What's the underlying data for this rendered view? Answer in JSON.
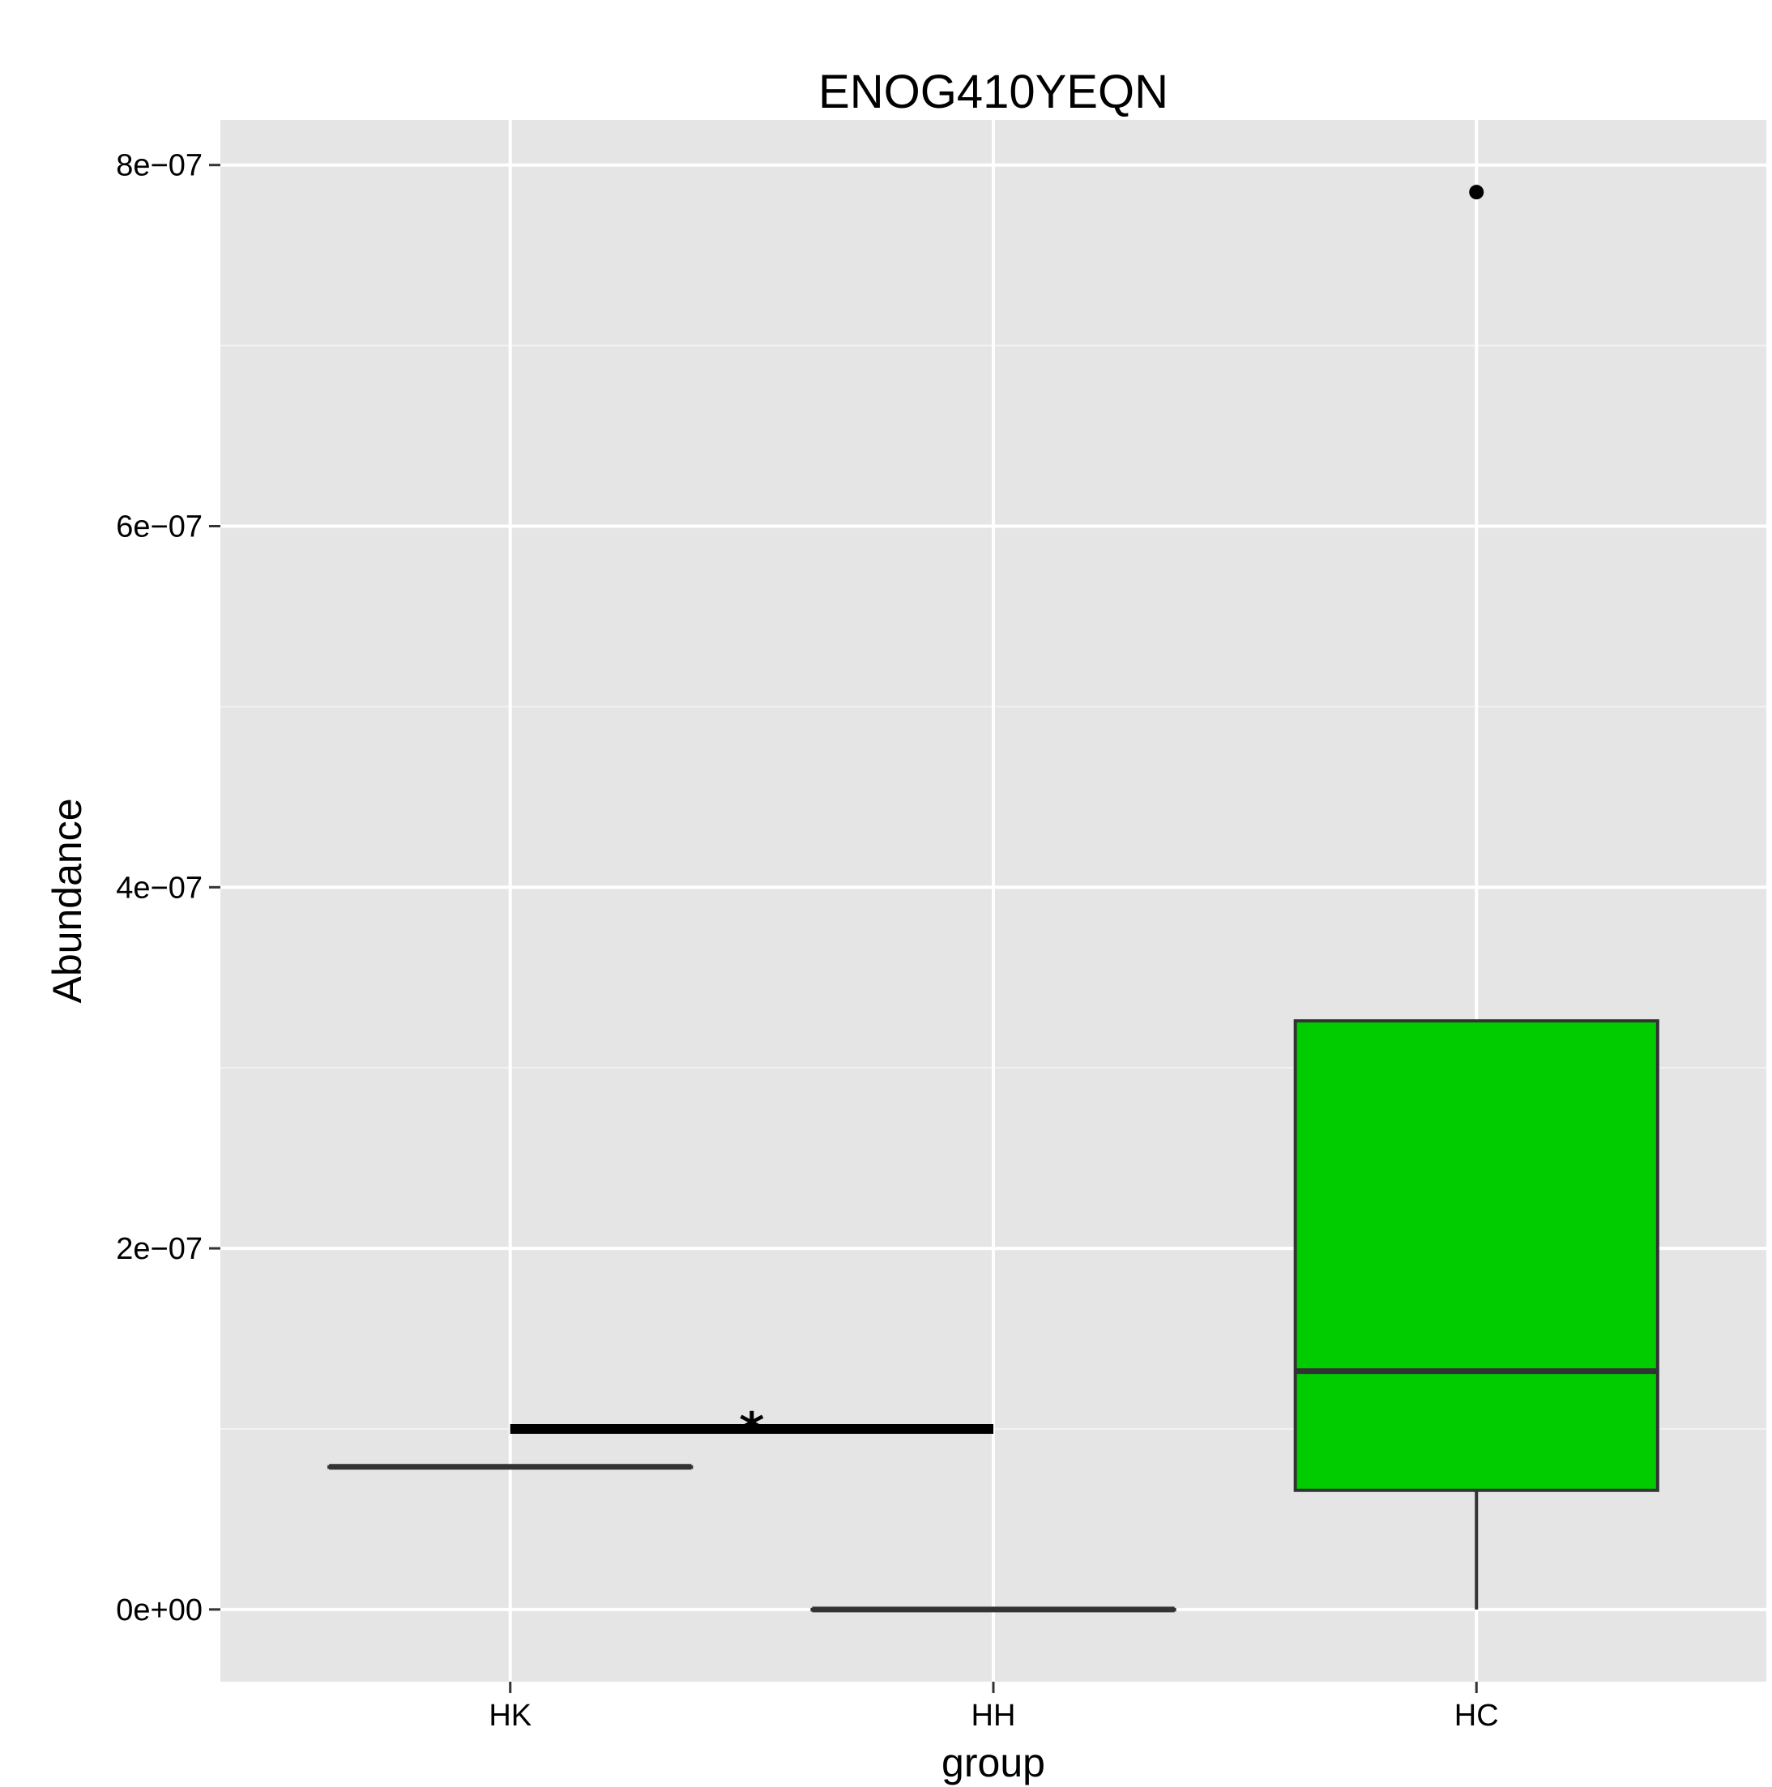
{
  "chart_data": {
    "type": "box",
    "title": "ENOG410YEQN",
    "xlabel": "group",
    "ylabel": "Abundance",
    "categories": [
      "HK",
      "HH",
      "HC"
    ],
    "y_ticks": [
      {
        "value": 0,
        "label": "0e+00"
      },
      {
        "value": 2e-07,
        "label": "2e−07"
      },
      {
        "value": 4e-07,
        "label": "4e−07"
      },
      {
        "value": 6e-07,
        "label": "6e−07"
      },
      {
        "value": 8e-07,
        "label": "8e−07"
      }
    ],
    "ylim": [
      -4e-08,
      8.25e-07
    ],
    "grid": true,
    "boxes": [
      {
        "group": "HK",
        "min": 7.9e-08,
        "q1": 7.9e-08,
        "median": 7.9e-08,
        "q3": 7.9e-08,
        "max": 7.9e-08,
        "outliers": [],
        "fill": "#e5e5e5"
      },
      {
        "group": "HH",
        "min": 0,
        "q1": 0,
        "median": 0,
        "q3": 0,
        "max": 0,
        "outliers": [],
        "fill": "#e5e5e5"
      },
      {
        "group": "HC",
        "min": 0,
        "q1": 6.6e-08,
        "median": 1.32e-07,
        "q3": 3.26e-07,
        "max": 3.26e-07,
        "outliers": [
          7.85e-07
        ],
        "fill": "#00cc00"
      }
    ],
    "annotations": [
      {
        "type": "significance",
        "from": "HK",
        "to": "HH",
        "y": 1e-07,
        "label": "*"
      }
    ],
    "colors": {
      "panel_background": "#e5e5e5",
      "grid_major": "#ffffff",
      "grid_minor": "#f2f2f2",
      "box_line": "#333333",
      "hc_fill": "#00cc00"
    }
  }
}
